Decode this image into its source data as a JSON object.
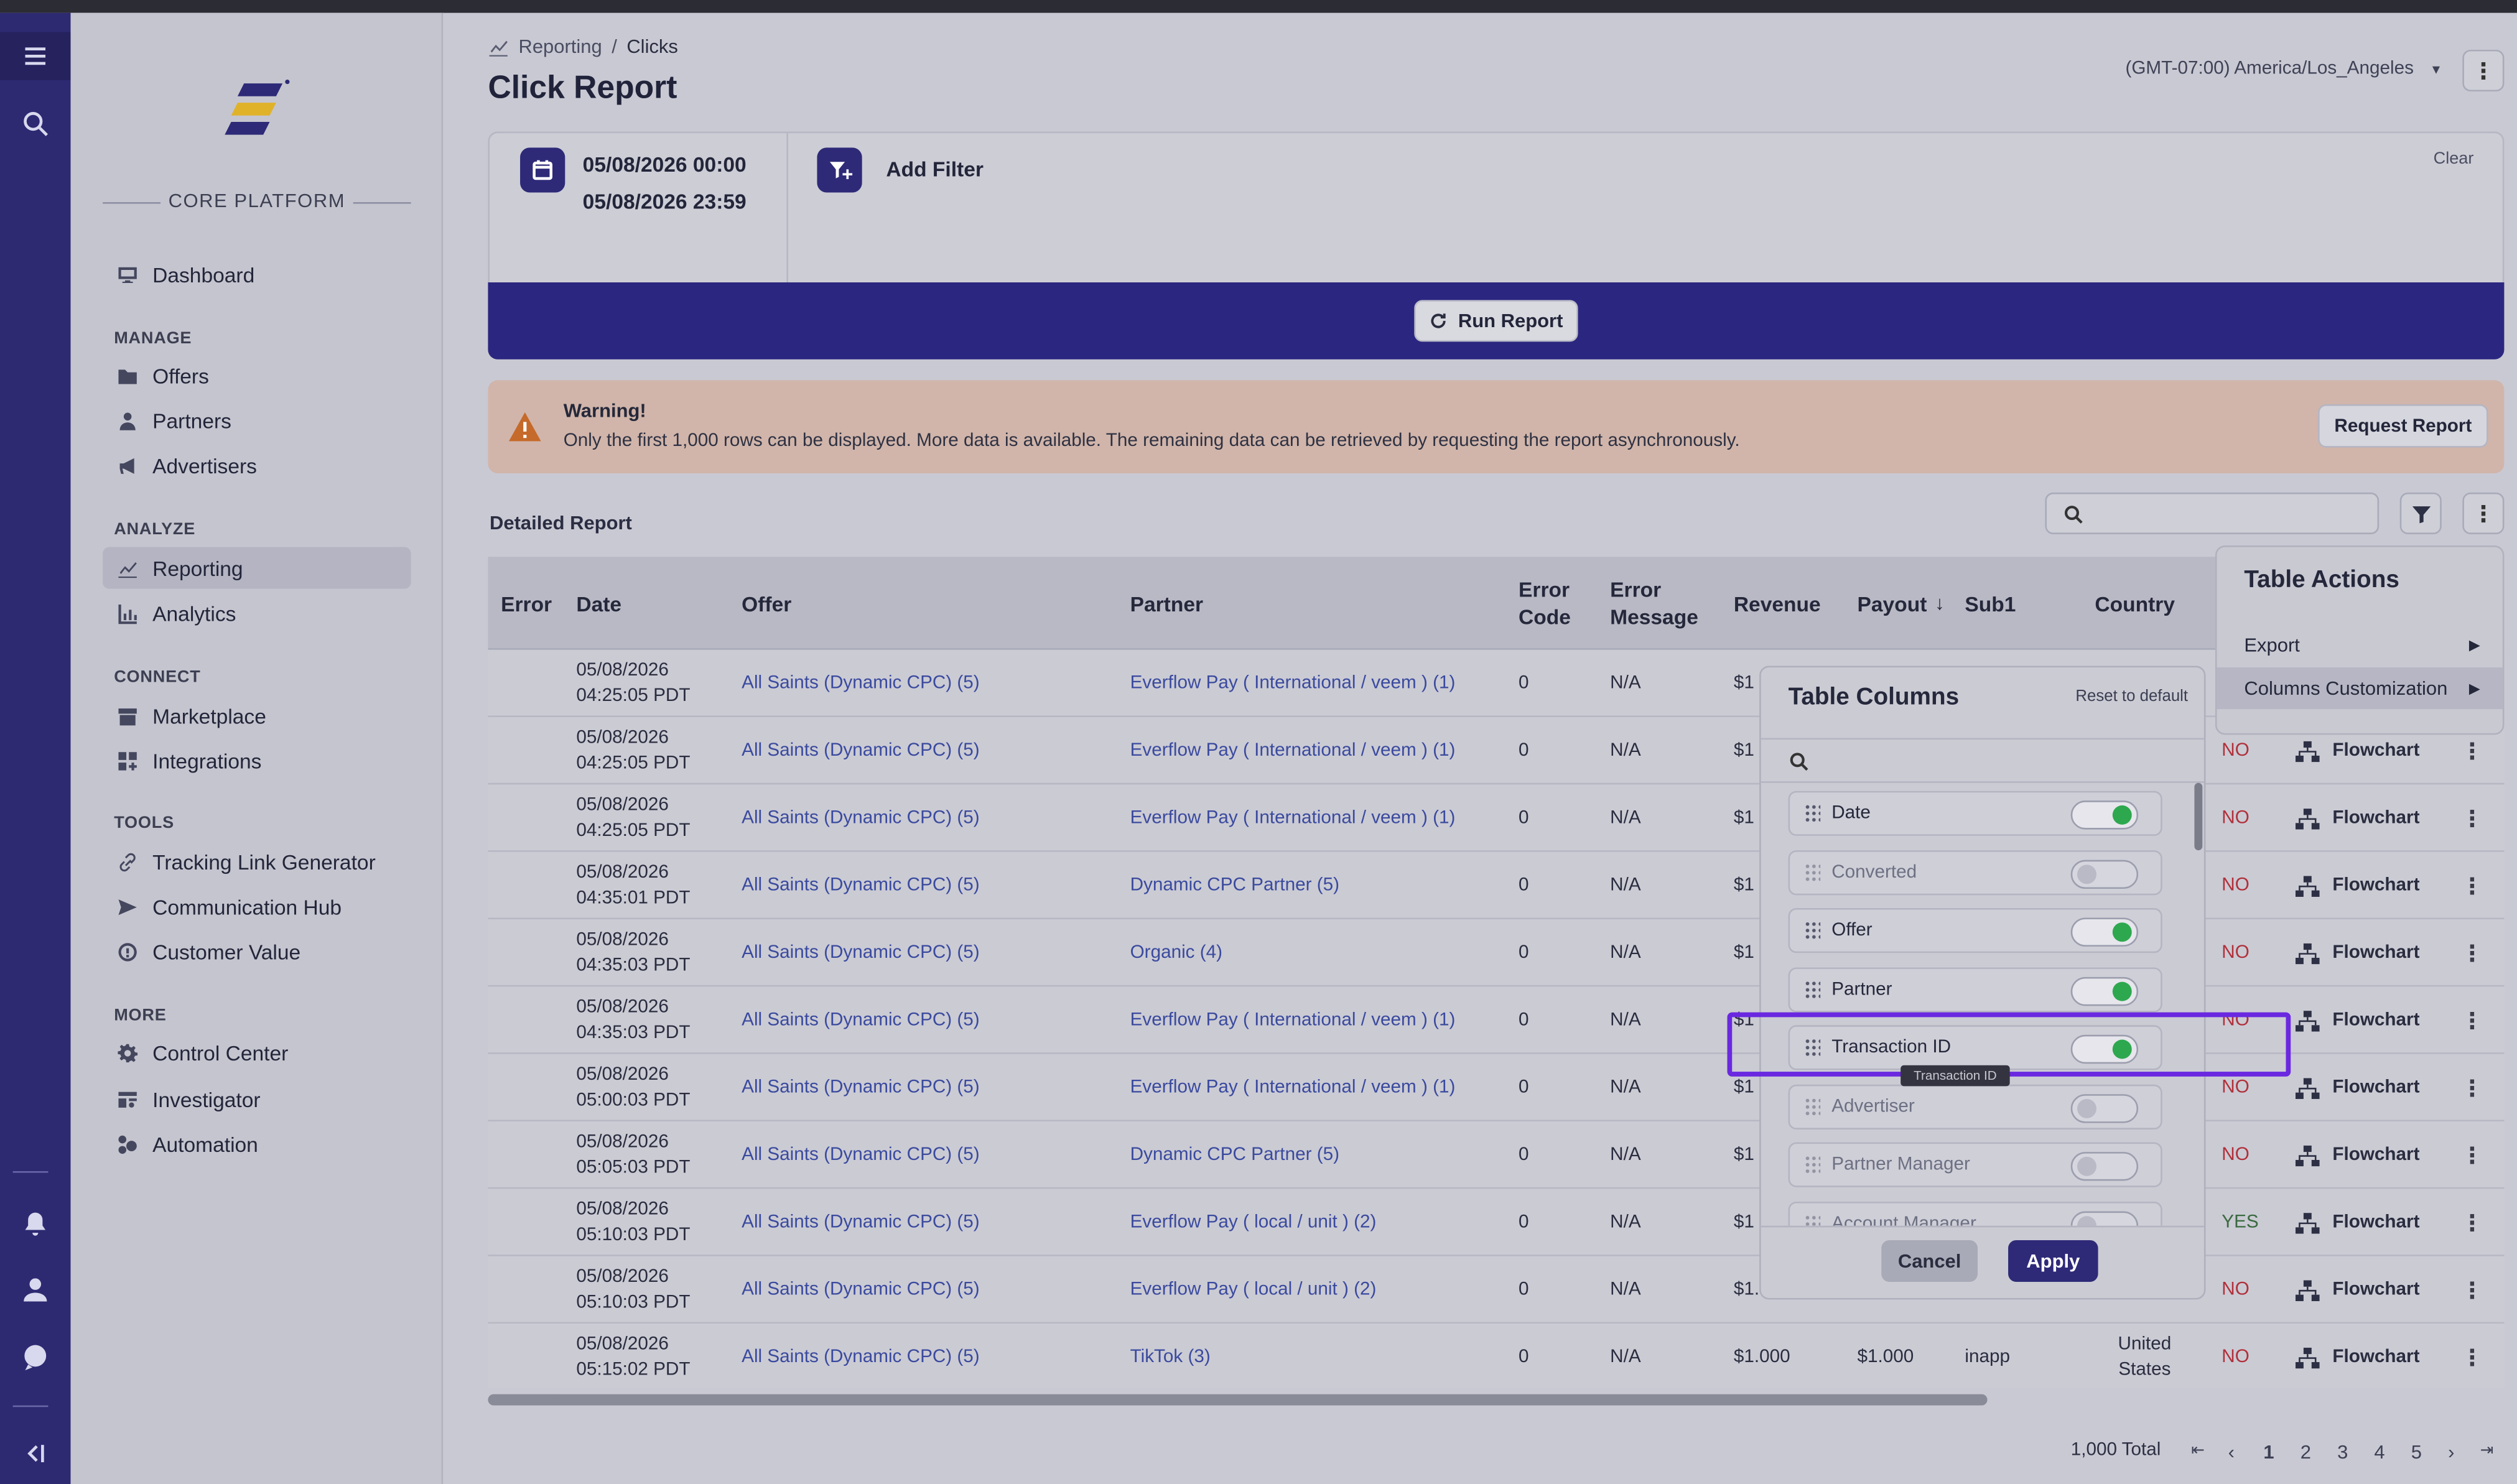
{
  "sidebar": {
    "platform_label": "CORE PLATFORM",
    "dashboard": "Dashboard",
    "sections": {
      "manage": "MANAGE",
      "analyze": "ANALYZE",
      "connect": "CONNECT",
      "tools": "TOOLS",
      "more": "MORE"
    },
    "items": {
      "offers": "Offers",
      "partners": "Partners",
      "advertisers": "Advertisers",
      "reporting": "Reporting",
      "analytics": "Analytics",
      "marketplace": "Marketplace",
      "integrations": "Integrations",
      "tracking": "Tracking Link Generator",
      "communication": "Communication Hub",
      "customer_value": "Customer Value",
      "control_center": "Control Center",
      "investigator": "Investigator",
      "automation": "Automation"
    }
  },
  "header": {
    "breadcrumb_parent": "Reporting",
    "breadcrumb_sep": "/",
    "breadcrumb_current": "Clicks",
    "title": "Click Report",
    "timezone": "(GMT-07:00) America/Los_Angeles"
  },
  "filters": {
    "date_start": "05/08/2026 00:00",
    "date_end": "05/08/2026 23:59",
    "add_filter": "Add Filter",
    "clear": "Clear",
    "run_report": "Run Report"
  },
  "warning": {
    "title": "Warning!",
    "message": "Only the first 1,000 rows can be displayed. More data is available. The remaining data can be retrieved by requesting the report asynchronously.",
    "request_button": "Request Report"
  },
  "report": {
    "title": "Detailed Report",
    "columns": {
      "error": "Error",
      "date": "Date",
      "offer": "Offer",
      "partner": "Partner",
      "error_code_1": "Error",
      "error_code_2": "Code",
      "error_msg_1": "Error",
      "error_msg_2": "Message",
      "revenue": "Revenue",
      "payout": "Payout",
      "sub1": "Sub1",
      "country": "Country"
    },
    "rows": [
      {
        "date": "05/08/2026",
        "time": "04:25:05 PDT",
        "offer": "All Saints (Dynamic CPC) (5)",
        "partner": "Everflow Pay ( International / veem ) (1)",
        "code": "0",
        "msg": "N/A",
        "rev": "$1",
        "payout": "",
        "sub1": "",
        "country": "",
        "conv": "",
        "flow": ""
      },
      {
        "date": "05/08/2026",
        "time": "04:25:05 PDT",
        "offer": "All Saints (Dynamic CPC) (5)",
        "partner": "Everflow Pay ( International / veem ) (1)",
        "code": "0",
        "msg": "N/A",
        "rev": "$1",
        "payout": "",
        "sub1": "",
        "country": "",
        "conv": "NO",
        "flow": "Flowchart"
      },
      {
        "date": "05/08/2026",
        "time": "04:25:05 PDT",
        "offer": "All Saints (Dynamic CPC) (5)",
        "partner": "Everflow Pay ( International / veem ) (1)",
        "code": "0",
        "msg": "N/A",
        "rev": "$1",
        "payout": "",
        "sub1": "",
        "country": "",
        "conv": "NO",
        "flow": "Flowchart"
      },
      {
        "date": "05/08/2026",
        "time": "04:35:01 PDT",
        "offer": "All Saints (Dynamic CPC) (5)",
        "partner": "Dynamic CPC Partner (5)",
        "code": "0",
        "msg": "N/A",
        "rev": "$1",
        "payout": "",
        "sub1": "",
        "country": "",
        "conv": "NO",
        "flow": "Flowchart"
      },
      {
        "date": "05/08/2026",
        "time": "04:35:03 PDT",
        "offer": "All Saints (Dynamic CPC) (5)",
        "partner": "Organic (4)",
        "code": "0",
        "msg": "N/A",
        "rev": "$1",
        "payout": "",
        "sub1": "",
        "country": "",
        "conv": "NO",
        "flow": "Flowchart"
      },
      {
        "date": "05/08/2026",
        "time": "04:35:03 PDT",
        "offer": "All Saints (Dynamic CPC) (5)",
        "partner": "Everflow Pay ( International / veem ) (1)",
        "code": "0",
        "msg": "N/A",
        "rev": "$1",
        "payout": "",
        "sub1": "",
        "country": "",
        "conv": "NO",
        "flow": "Flowchart"
      },
      {
        "date": "05/08/2026",
        "time": "05:00:03 PDT",
        "offer": "All Saints (Dynamic CPC) (5)",
        "partner": "Everflow Pay ( International / veem ) (1)",
        "code": "0",
        "msg": "N/A",
        "rev": "$1",
        "payout": "",
        "sub1": "",
        "country": "",
        "conv": "NO",
        "flow": "Flowchart"
      },
      {
        "date": "05/08/2026",
        "time": "05:05:03 PDT",
        "offer": "All Saints (Dynamic CPC) (5)",
        "partner": "Dynamic CPC Partner (5)",
        "code": "0",
        "msg": "N/A",
        "rev": "$1",
        "payout": "",
        "sub1": "",
        "country": "",
        "conv": "NO",
        "flow": "Flowchart"
      },
      {
        "date": "05/08/2026",
        "time": "05:10:03 PDT",
        "offer": "All Saints (Dynamic CPC) (5)",
        "partner": "Everflow Pay ( local / unit ) (2)",
        "code": "0",
        "msg": "N/A",
        "rev": "$1",
        "payout": "",
        "sub1": "",
        "country": "",
        "conv": "YES",
        "flow": "Flowchart"
      },
      {
        "date": "05/08/2026",
        "time": "05:10:03 PDT",
        "offer": "All Saints (Dynamic CPC) (5)",
        "partner": "Everflow Pay ( local / unit ) (2)",
        "code": "0",
        "msg": "N/A",
        "rev": "$1.",
        "payout": "",
        "sub1": "",
        "country": "",
        "conv": "NO",
        "flow": "Flowchart"
      },
      {
        "date": "05/08/2026",
        "time": "05:15:02 PDT",
        "offer": "All Saints (Dynamic CPC) (5)",
        "partner": "TikTok (3)",
        "code": "0",
        "msg": "N/A",
        "rev": "$1.000",
        "payout": "$1.000",
        "sub1": "inapp",
        "country": "United States",
        "conv": "NO",
        "flow": "Flowchart"
      }
    ],
    "total": "1,000 Total",
    "pages": [
      "1",
      "2",
      "3",
      "4",
      "5"
    ]
  },
  "table_actions": {
    "title": "Table Actions",
    "export": "Export",
    "columns_customization": "Columns Customization"
  },
  "table_columns": {
    "title": "Table Columns",
    "reset": "Reset to default",
    "tooltip": "Transaction ID",
    "cancel": "Cancel",
    "apply": "Apply",
    "items": [
      {
        "label": "Date",
        "on": true
      },
      {
        "label": "Converted",
        "on": false
      },
      {
        "label": "Offer",
        "on": true
      },
      {
        "label": "Partner",
        "on": true
      },
      {
        "label": "Transaction ID",
        "on": true
      },
      {
        "label": "Advertiser",
        "on": false
      },
      {
        "label": "Partner Manager",
        "on": false
      },
      {
        "label": "Account Manager",
        "on": false
      }
    ]
  },
  "colors": {
    "brand": "#2e2a78",
    "rail": "#2d2a72",
    "toggle_on": "#2ea84f",
    "highlight": "#6a28e0",
    "link": "#3a4a9e"
  }
}
